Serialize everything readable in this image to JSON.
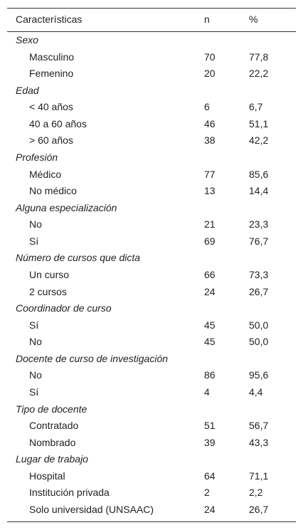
{
  "table": {
    "header": [
      "Características",
      "n",
      "%"
    ],
    "groups": [
      {
        "title": "Sexo",
        "rows": [
          [
            "Masculino",
            "70",
            "77,8"
          ],
          [
            "Femenino",
            "20",
            "22,2"
          ]
        ]
      },
      {
        "title": "Edad",
        "rows": [
          [
            "< 40 años",
            "6",
            "6,7"
          ],
          [
            "40 a 60 años",
            "46",
            "51,1"
          ],
          [
            "> 60 años",
            "38",
            "42,2"
          ]
        ]
      },
      {
        "title": "Profesión",
        "rows": [
          [
            "Médico",
            "77",
            "85,6"
          ],
          [
            "No médico",
            "13",
            "14,4"
          ]
        ]
      },
      {
        "title": "Alguna especialización",
        "rows": [
          [
            "No",
            "21",
            "23,3"
          ],
          [
            "Sí",
            "69",
            "76,7"
          ]
        ]
      },
      {
        "title": "Número de cursos que dicta",
        "rows": [
          [
            "Un curso",
            "66",
            "73,3"
          ],
          [
            "2 cursos",
            "24",
            "26,7"
          ]
        ]
      },
      {
        "title": "Coordinador de curso",
        "rows": [
          [
            "Sí",
            "45",
            "50,0"
          ],
          [
            "No",
            "45",
            "50,0"
          ]
        ]
      },
      {
        "title": "Docente de curso de investigación",
        "rows": [
          [
            "No",
            "86",
            "95,6"
          ],
          [
            "Sí",
            "4",
            "4,4"
          ]
        ]
      },
      {
        "title": "Tipo de docente",
        "rows": [
          [
            "Contratado",
            "51",
            "56,7"
          ],
          [
            "Nombrado",
            "39",
            "43,3"
          ]
        ]
      },
      {
        "title": "Lugar de trabajo",
        "rows": [
          [
            "Hospital",
            "64",
            "71,1"
          ],
          [
            "Institución privada",
            "2",
            "2,2"
          ],
          [
            "Solo universidad (UNSAAC)",
            "24",
            "26,7"
          ]
        ]
      }
    ]
  }
}
